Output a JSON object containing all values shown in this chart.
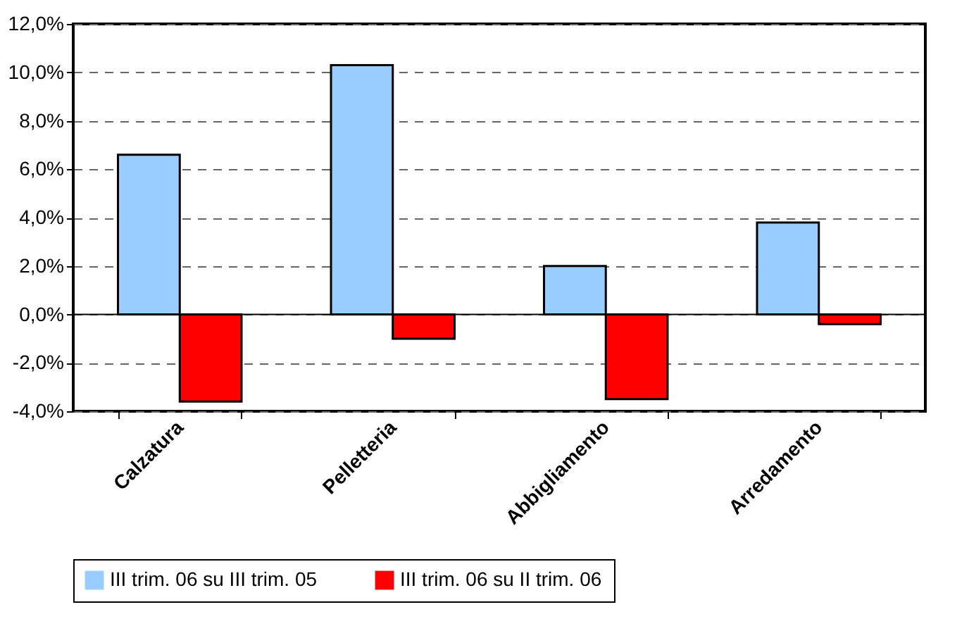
{
  "chart_data": {
    "type": "bar",
    "categories": [
      "Calzatura",
      "Pelletteria",
      "Abbigliamento",
      "Arredamento"
    ],
    "series": [
      {
        "name": "III trim. 06 su III trim. 05",
        "color": "#99ccff",
        "values": [
          6.6,
          10.3,
          2.0,
          3.8
        ]
      },
      {
        "name": "III trim. 06 su II trim. 06",
        "color": "#ff0000",
        "values": [
          -3.6,
          -1.0,
          -3.5,
          -0.4
        ]
      }
    ],
    "ylim": [
      -4,
      12
    ],
    "yticks": [
      {
        "value": -4,
        "label": "-4,0%"
      },
      {
        "value": -2,
        "label": "-2,0%"
      },
      {
        "value": 0,
        "label": "0,0%"
      },
      {
        "value": 2,
        "label": "2,0%"
      },
      {
        "value": 4,
        "label": "4,0%"
      },
      {
        "value": 6,
        "label": "6,0%"
      },
      {
        "value": 8,
        "label": "8,0%"
      },
      {
        "value": 10,
        "label": "10,0%"
      },
      {
        "value": 12,
        "label": "12,0%"
      }
    ],
    "grid": "y",
    "legend": "bottom"
  }
}
